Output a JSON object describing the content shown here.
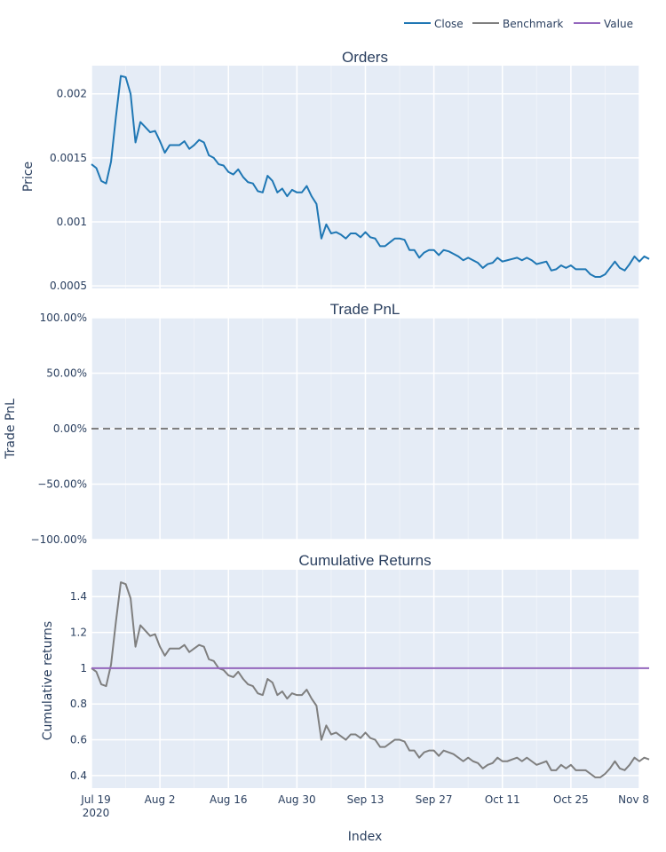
{
  "chart_data": {
    "type": "line",
    "x_axis": {
      "title": "Index",
      "ticks": [
        "Jul 19",
        "Aug 2",
        "Aug 16",
        "Aug 30",
        "Sep 13",
        "Sep 27",
        "Oct 11",
        "Oct 25",
        "Nov 8"
      ],
      "year_label": "2020",
      "range": [
        "2020-07-19",
        "2020-11-08"
      ]
    },
    "legend": {
      "position": "top-right",
      "orientation": "horizontal",
      "items": [
        {
          "name": "Close",
          "color": "#1f77b4"
        },
        {
          "name": "Benchmark",
          "color": "#7f7f7f"
        },
        {
          "name": "Value",
          "color": "#9467bd"
        }
      ]
    },
    "subplots": [
      {
        "title": "Orders",
        "ylabel": "Price",
        "ylim": [
          0.00048,
          0.00222
        ],
        "yticks": [
          "0.0005",
          "0.001",
          "0.0015",
          "0.002"
        ],
        "series": [
          {
            "name": "Close",
            "color": "#1f77b4",
            "start": "2020-07-19",
            "step_days": 1,
            "values": [
              0.00145,
              0.00142,
              0.00132,
              0.0013,
              0.00147,
              0.00182,
              0.00214,
              0.00213,
              0.002,
              0.00162,
              0.00178,
              0.00174,
              0.0017,
              0.00171,
              0.00163,
              0.00154,
              0.0016,
              0.0016,
              0.0016,
              0.00163,
              0.00157,
              0.0016,
              0.00164,
              0.00162,
              0.00152,
              0.0015,
              0.00145,
              0.00144,
              0.00139,
              0.00137,
              0.00141,
              0.00135,
              0.00131,
              0.0013,
              0.00124,
              0.00123,
              0.00136,
              0.00132,
              0.00123,
              0.00126,
              0.0012,
              0.00125,
              0.00123,
              0.00123,
              0.00128,
              0.0012,
              0.00114,
              0.00087,
              0.00098,
              0.00091,
              0.00092,
              0.0009,
              0.00087,
              0.00091,
              0.00091,
              0.00088,
              0.00092,
              0.00088,
              0.00087,
              0.00081,
              0.00081,
              0.00084,
              0.00087,
              0.00087,
              0.00086,
              0.00078,
              0.00078,
              0.00072,
              0.00076,
              0.00078,
              0.00078,
              0.00074,
              0.00078,
              0.00077,
              0.00075,
              0.00073,
              0.0007,
              0.00072,
              0.0007,
              0.00068,
              0.00064,
              0.00067,
              0.00068,
              0.00072,
              0.00069,
              0.0007,
              0.00071,
              0.00072,
              0.0007,
              0.00072,
              0.0007,
              0.00067,
              0.00068,
              0.00069,
              0.00062,
              0.00063,
              0.00066,
              0.00064,
              0.00066,
              0.00063,
              0.00063,
              0.00063,
              0.00059,
              0.00057,
              0.00057,
              0.00059,
              0.00064,
              0.00069,
              0.00064,
              0.00062,
              0.00067,
              0.00073,
              0.00069,
              0.00073,
              0.00071
            ]
          }
        ]
      },
      {
        "title": "Trade PnL",
        "ylabel": "Trade PnL",
        "ylim": [
          -1.0,
          1.0
        ],
        "yticks": [
          "100.00%",
          "50.00%",
          "0.00%",
          "−50.00%",
          "−100.00%"
        ],
        "reference_line": {
          "y": 0,
          "style": "dashed",
          "color": "#7f7f7f"
        }
      },
      {
        "title": "Cumulative Returns",
        "ylabel": "Cumulative returns",
        "ylim": [
          0.33,
          1.55
        ],
        "yticks": [
          "0.4",
          "0.6",
          "0.8",
          "1",
          "1.2",
          "1.4"
        ],
        "series": [
          {
            "name": "Benchmark",
            "color": "#7f7f7f",
            "start": "2020-07-19",
            "step_days": 1,
            "values": [
              1.0,
              0.98,
              0.91,
              0.9,
              1.02,
              1.26,
              1.48,
              1.47,
              1.39,
              1.12,
              1.24,
              1.21,
              1.18,
              1.19,
              1.12,
              1.07,
              1.11,
              1.11,
              1.11,
              1.13,
              1.09,
              1.11,
              1.13,
              1.12,
              1.05,
              1.04,
              1.0,
              0.99,
              0.96,
              0.95,
              0.98,
              0.94,
              0.91,
              0.9,
              0.86,
              0.85,
              0.94,
              0.92,
              0.85,
              0.87,
              0.83,
              0.86,
              0.85,
              0.85,
              0.88,
              0.83,
              0.79,
              0.6,
              0.68,
              0.63,
              0.64,
              0.62,
              0.6,
              0.63,
              0.63,
              0.61,
              0.64,
              0.61,
              0.6,
              0.56,
              0.56,
              0.58,
              0.6,
              0.6,
              0.59,
              0.54,
              0.54,
              0.5,
              0.53,
              0.54,
              0.54,
              0.51,
              0.54,
              0.53,
              0.52,
              0.5,
              0.48,
              0.5,
              0.48,
              0.47,
              0.44,
              0.46,
              0.47,
              0.5,
              0.48,
              0.48,
              0.49,
              0.5,
              0.48,
              0.5,
              0.48,
              0.46,
              0.47,
              0.48,
              0.43,
              0.43,
              0.46,
              0.44,
              0.46,
              0.43,
              0.43,
              0.43,
              0.41,
              0.39,
              0.39,
              0.41,
              0.44,
              0.48,
              0.44,
              0.43,
              0.46,
              0.5,
              0.48,
              0.5,
              0.49
            ]
          },
          {
            "name": "Value",
            "color": "#9467bd",
            "start": "2020-07-19",
            "step_days": 1,
            "values": [
              1,
              1,
              1,
              1,
              1,
              1,
              1,
              1,
              1,
              1,
              1,
              1,
              1,
              1,
              1,
              1,
              1,
              1,
              1,
              1,
              1,
              1,
              1,
              1,
              1,
              1,
              1,
              1,
              1,
              1,
              1,
              1,
              1,
              1,
              1,
              1,
              1,
              1,
              1,
              1,
              1,
              1,
              1,
              1,
              1,
              1,
              1,
              1,
              1,
              1,
              1,
              1,
              1,
              1,
              1,
              1,
              1,
              1,
              1,
              1,
              1,
              1,
              1,
              1,
              1,
              1,
              1,
              1,
              1,
              1,
              1,
              1,
              1,
              1,
              1,
              1,
              1,
              1,
              1,
              1,
              1,
              1,
              1,
              1,
              1,
              1,
              1,
              1,
              1,
              1,
              1,
              1,
              1,
              1,
              1,
              1,
              1,
              1,
              1,
              1,
              1,
              1,
              1,
              1,
              1,
              1,
              1,
              1,
              1,
              1,
              1,
              1,
              1,
              1,
              1
            ]
          }
        ]
      }
    ]
  }
}
